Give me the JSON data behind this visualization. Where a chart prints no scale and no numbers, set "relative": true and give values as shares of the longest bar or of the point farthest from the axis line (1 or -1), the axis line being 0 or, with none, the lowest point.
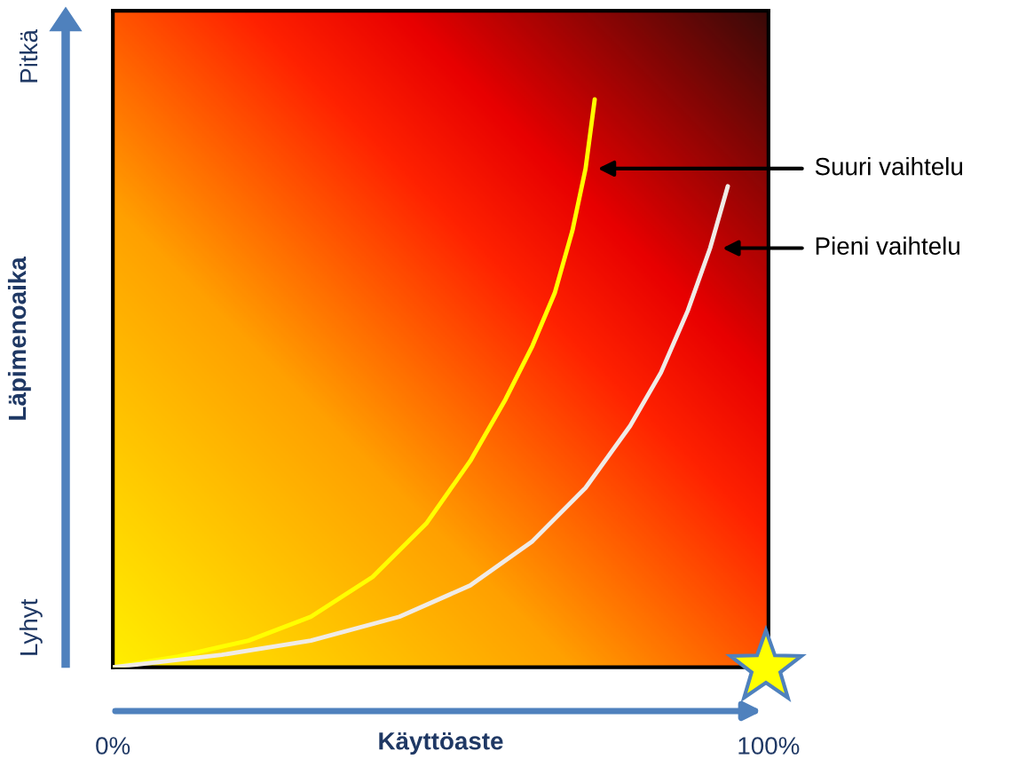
{
  "chart_data": {
    "type": "line",
    "xlabel": "Käyttöaste",
    "ylabel": "Läpimenoaika",
    "relative": true,
    "tick_labels": "x",
    "xlim": [
      0,
      100
    ],
    "xticks": [
      {
        "value": 0,
        "label": "0%"
      },
      {
        "value": 100,
        "label": "100%"
      }
    ],
    "annotations": [
      "Lyhyt",
      "Pitkä"
    ],
    "series": [
      {
        "name": "Suuri vaihtelu",
        "color": "#ffff00",
        "x": [
          0,
          9.9,
          20.7,
          30.2,
          39.6,
          47.8,
          54.5,
          59.9,
          64.0,
          67.4,
          70.1,
          72.1,
          73.5
        ],
        "values": [
          0,
          0.019,
          0.047,
          0.089,
          0.159,
          0.253,
          0.363,
          0.472,
          0.566,
          0.659,
          0.769,
          0.878,
          1.0
        ]
      },
      {
        "name": "Pieni vaihtelu",
        "color": "#f0ebe6",
        "x": [
          0,
          16.6,
          30.2,
          43.7,
          54.5,
          64.0,
          72.1,
          78.9,
          83.6,
          87.7,
          91.1,
          93.8
        ],
        "values": [
          0,
          0.022,
          0.047,
          0.089,
          0.144,
          0.222,
          0.316,
          0.425,
          0.519,
          0.628,
          0.738,
          0.847
        ]
      }
    ]
  }
}
